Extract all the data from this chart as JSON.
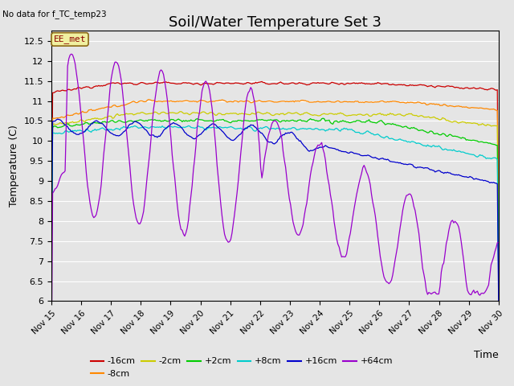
{
  "title": "Soil/Water Temperature Set 3",
  "ylabel": "Temperature (C)",
  "no_data_text": "No data for f_TC_temp23",
  "annotation_text": "EE_met",
  "ylim": [
    6.0,
    12.75
  ],
  "yticks": [
    6.0,
    6.5,
    7.0,
    7.5,
    8.0,
    8.5,
    9.0,
    9.5,
    10.0,
    10.5,
    11.0,
    11.5,
    12.0,
    12.5
  ],
  "plot_bg_color": "#e5e5e5",
  "series": [
    {
      "label": "-16cm",
      "color": "#cc0000"
    },
    {
      "label": "-8cm",
      "color": "#ff8800"
    },
    {
      "label": "-2cm",
      "color": "#cccc00"
    },
    {
      "label": "+2cm",
      "color": "#00cc00"
    },
    {
      "label": "+8cm",
      "color": "#00cccc"
    },
    {
      "label": "+16cm",
      "color": "#0000cc"
    },
    {
      "label": "+64cm",
      "color": "#9900cc"
    }
  ],
  "grid_color": "#ffffff",
  "title_fontsize": 13,
  "axis_fontsize": 9,
  "tick_fontsize": 8
}
